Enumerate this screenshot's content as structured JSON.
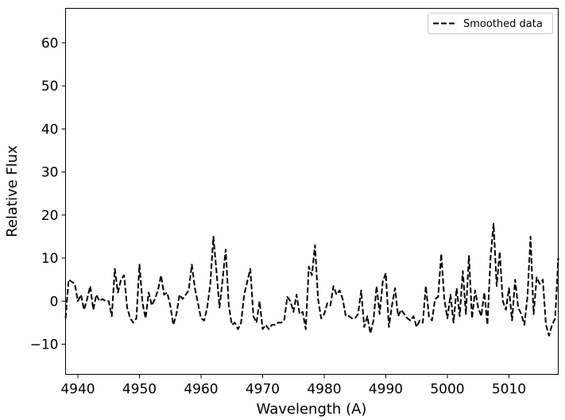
{
  "chart_data": {
    "type": "line",
    "title": "",
    "xlabel": "Wavelength (A)",
    "ylabel": "Relative Flux",
    "xlim": [
      4938,
      5018
    ],
    "ylim": [
      -17,
      68
    ],
    "xticks": [
      4940,
      4950,
      4960,
      4970,
      4980,
      4990,
      5000,
      5010
    ],
    "xtick_labels": [
      "4940",
      "4950",
      "4960",
      "4970",
      "4980",
      "4990",
      "5000",
      "5010"
    ],
    "yticks": [
      -10,
      0,
      10,
      20,
      30,
      40,
      50,
      60
    ],
    "ytick_labels": [
      "−10",
      "0",
      "10",
      "20",
      "30",
      "40",
      "50",
      "60"
    ],
    "grid": false,
    "legend": {
      "position": "top-right"
    },
    "series": [
      {
        "name": "Smoothed data",
        "style": "dashed",
        "color": "#000000",
        "points": [
          [
            4938.0,
            -4.0
          ],
          [
            4938.5,
            5.0
          ],
          [
            4939.0,
            4.5
          ],
          [
            4939.5,
            4.0
          ],
          [
            4940.0,
            0.0
          ],
          [
            4940.5,
            1.5
          ],
          [
            4941.0,
            -2.0
          ],
          [
            4941.5,
            0.5
          ],
          [
            4942.0,
            3.5
          ],
          [
            4942.5,
            -2.0
          ],
          [
            4943.0,
            1.5
          ],
          [
            4943.5,
            0.0
          ],
          [
            4944.0,
            0.5
          ],
          [
            4944.5,
            0.0
          ],
          [
            4945.0,
            0.0
          ],
          [
            4945.5,
            -3.5
          ],
          [
            4946.0,
            7.5
          ],
          [
            4946.5,
            2.0
          ],
          [
            4947.0,
            5.0
          ],
          [
            4947.5,
            6.0
          ],
          [
            4948.0,
            -1.5
          ],
          [
            4948.5,
            -4.0
          ],
          [
            4949.0,
            -5.0
          ],
          [
            4949.5,
            -4.0
          ],
          [
            4950.0,
            8.5
          ],
          [
            4950.5,
            -0.5
          ],
          [
            4951.0,
            -4.0
          ],
          [
            4951.5,
            2.0
          ],
          [
            4952.0,
            -1.0
          ],
          [
            4952.5,
            0.5
          ],
          [
            4953.0,
            2.5
          ],
          [
            4953.5,
            6.0
          ],
          [
            4954.0,
            1.5
          ],
          [
            4954.5,
            2.0
          ],
          [
            4955.0,
            -1.0
          ],
          [
            4955.5,
            -5.5
          ],
          [
            4956.0,
            -3.0
          ],
          [
            4956.5,
            1.5
          ],
          [
            4957.0,
            0.5
          ],
          [
            4957.5,
            1.5
          ],
          [
            4958.0,
            2.5
          ],
          [
            4958.5,
            8.5
          ],
          [
            4959.0,
            3.0
          ],
          [
            4959.5,
            -0.5
          ],
          [
            4960.0,
            -4.0
          ],
          [
            4960.5,
            -4.5
          ],
          [
            4961.0,
            -1.5
          ],
          [
            4961.5,
            4.0
          ],
          [
            4962.0,
            15.0
          ],
          [
            4962.5,
            7.0
          ],
          [
            4963.0,
            -1.5
          ],
          [
            4963.5,
            5.0
          ],
          [
            4964.0,
            12.0
          ],
          [
            4964.5,
            -1.0
          ],
          [
            4965.0,
            -5.5
          ],
          [
            4965.5,
            -5.0
          ],
          [
            4966.0,
            -6.5
          ],
          [
            4966.5,
            -5.0
          ],
          [
            4967.0,
            1.5
          ],
          [
            4967.5,
            4.5
          ],
          [
            4968.0,
            7.5
          ],
          [
            4968.5,
            -3.5
          ],
          [
            4969.0,
            -5.0
          ],
          [
            4969.5,
            0.0
          ],
          [
            4970.0,
            -6.5
          ],
          [
            4970.5,
            -5.5
          ],
          [
            4971.0,
            -6.5
          ],
          [
            4971.5,
            -5.5
          ],
          [
            4972.0,
            -5.5
          ],
          [
            4972.5,
            -5.0
          ],
          [
            4973.0,
            -5.0
          ],
          [
            4973.5,
            -4.5
          ],
          [
            4974.0,
            1.0
          ],
          [
            4974.5,
            0.0
          ],
          [
            4975.0,
            -2.5
          ],
          [
            4975.5,
            1.5
          ],
          [
            4976.0,
            -3.0
          ],
          [
            4976.5,
            -2.5
          ],
          [
            4977.0,
            -6.5
          ],
          [
            4977.5,
            8.0
          ],
          [
            4978.0,
            6.0
          ],
          [
            4978.5,
            13.0
          ],
          [
            4979.0,
            0.5
          ],
          [
            4979.5,
            -4.0
          ],
          [
            4980.0,
            -3.0
          ],
          [
            4980.5,
            -0.5
          ],
          [
            4981.0,
            -1.0
          ],
          [
            4981.5,
            3.5
          ],
          [
            4982.0,
            1.5
          ],
          [
            4982.5,
            2.5
          ],
          [
            4983.0,
            0.5
          ],
          [
            4983.5,
            -3.5
          ],
          [
            4984.0,
            -3.5
          ],
          [
            4984.5,
            -4.0
          ],
          [
            4985.0,
            -4.0
          ],
          [
            4985.5,
            -3.0
          ],
          [
            4986.0,
            2.5
          ],
          [
            4986.5,
            -6.0
          ],
          [
            4987.0,
            -3.5
          ],
          [
            4987.5,
            -7.5
          ],
          [
            4988.0,
            -4.5
          ],
          [
            4988.5,
            3.5
          ],
          [
            4989.0,
            -3.0
          ],
          [
            4989.5,
            4.5
          ],
          [
            4990.0,
            6.5
          ],
          [
            4990.5,
            -6.0
          ],
          [
            4991.0,
            -1.0
          ],
          [
            4991.5,
            3.0
          ],
          [
            4992.0,
            -3.5
          ],
          [
            4992.5,
            -2.0
          ],
          [
            4993.0,
            -3.0
          ],
          [
            4993.5,
            -4.0
          ],
          [
            4994.0,
            -4.5
          ],
          [
            4994.5,
            -3.5
          ],
          [
            4995.0,
            -6.0
          ],
          [
            4995.5,
            -4.5
          ],
          [
            4996.0,
            -5.0
          ],
          [
            4996.5,
            3.5
          ],
          [
            4997.0,
            -3.5
          ],
          [
            4997.5,
            -4.5
          ],
          [
            4998.0,
            0.5
          ],
          [
            4998.5,
            1.0
          ],
          [
            4999.0,
            11.0
          ],
          [
            4999.5,
            0.5
          ],
          [
            5000.0,
            -4.0
          ],
          [
            5000.5,
            1.5
          ],
          [
            5001.0,
            -5.0
          ],
          [
            5001.5,
            3.0
          ],
          [
            5002.0,
            -3.5
          ],
          [
            5002.5,
            7.0
          ],
          [
            5003.0,
            -3.0
          ],
          [
            5003.5,
            10.5
          ],
          [
            5004.0,
            -4.0
          ],
          [
            5004.5,
            2.5
          ],
          [
            5005.0,
            -1.5
          ],
          [
            5005.5,
            -3.5
          ],
          [
            5006.0,
            2.0
          ],
          [
            5006.5,
            -5.5
          ],
          [
            5007.0,
            10.0
          ],
          [
            5007.5,
            18.0
          ],
          [
            5008.0,
            3.5
          ],
          [
            5008.5,
            11.5
          ],
          [
            5009.0,
            0.0
          ],
          [
            5009.5,
            -2.0
          ],
          [
            5010.0,
            3.0
          ],
          [
            5010.5,
            -4.5
          ],
          [
            5011.0,
            5.0
          ],
          [
            5011.5,
            -1.5
          ],
          [
            5012.0,
            -3.0
          ],
          [
            5012.5,
            -5.5
          ],
          [
            5013.0,
            1.0
          ],
          [
            5013.5,
            15.0
          ],
          [
            5014.0,
            -3.0
          ],
          [
            5014.5,
            5.5
          ],
          [
            5015.0,
            4.0
          ],
          [
            5015.5,
            5.0
          ],
          [
            5016.0,
            -5.5
          ],
          [
            5016.5,
            -8.0
          ],
          [
            5017.0,
            -5.5
          ],
          [
            5017.5,
            -4.0
          ],
          [
            5018.0,
            10.0
          ]
        ]
      }
    ]
  }
}
